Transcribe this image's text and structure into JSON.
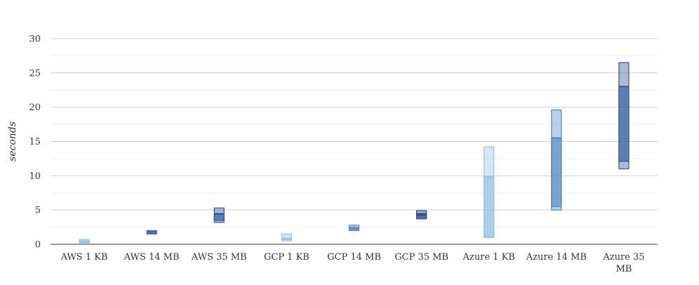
{
  "chart_data": {
    "type": "boxplot",
    "title": "",
    "xlabel": "",
    "ylabel": "seconds",
    "ylim": [
      0,
      30
    ],
    "yticks": [
      0,
      5,
      10,
      15,
      20,
      25,
      30
    ],
    "grid": true,
    "categories": [
      "AWS 1 KB",
      "AWS 14 MB",
      "AWS 35 MB",
      "GCP 1 KB",
      "GCP 14 MB",
      "GCP 35 MB",
      "Azure 1 KB",
      "Azure 14 MB",
      "Azure 35 MB"
    ],
    "category_lines": [
      [
        "AWS 1 KB"
      ],
      [
        "AWS 14 MB"
      ],
      [
        "AWS 35 MB"
      ],
      [
        "GCP 1 KB"
      ],
      [
        "GCP 14 MB"
      ],
      [
        "GCP 35 MB"
      ],
      [
        "Azure 1 KB"
      ],
      [
        "Azure 14 MB"
      ],
      [
        "Azure 35",
        "MB"
      ]
    ],
    "boxes": [
      {
        "min": 0.2,
        "q1": 0.3,
        "median": 0.4,
        "q3": 0.5,
        "max": 0.7,
        "color": "#90c2ec"
      },
      {
        "min": 1.5,
        "q1": 1.6,
        "median": 1.8,
        "q3": 1.9,
        "max": 2.0,
        "color": "#3d6fb0"
      },
      {
        "min": 3.2,
        "q1": 3.5,
        "median": 4.4,
        "q3": 4.5,
        "max": 5.3,
        "color": "#2d5799"
      },
      {
        "min": 0.5,
        "q1": 0.7,
        "median": 0.8,
        "q3": 0.9,
        "max": 1.5,
        "color": "#90c2ec"
      },
      {
        "min": 2.0,
        "q1": 2.1,
        "median": 2.3,
        "q3": 2.5,
        "max": 2.8,
        "color": "#5b8ed0"
      },
      {
        "min": 3.7,
        "q1": 3.9,
        "median": 4.3,
        "q3": 4.5,
        "max": 4.9,
        "color": "#23488a"
      },
      {
        "min": 1.0,
        "q1": 1.0,
        "median": 9.8,
        "q3": 9.8,
        "max": 14.2,
        "color": "#90c2ec"
      },
      {
        "min": 5.0,
        "q1": 5.5,
        "median": 15.5,
        "q3": 15.5,
        "max": 19.6,
        "color": "#4f86c8"
      },
      {
        "min": 11.0,
        "q1": 12.1,
        "median": 23.0,
        "q3": 23.0,
        "max": 26.5,
        "color": "#2d5799"
      }
    ]
  }
}
